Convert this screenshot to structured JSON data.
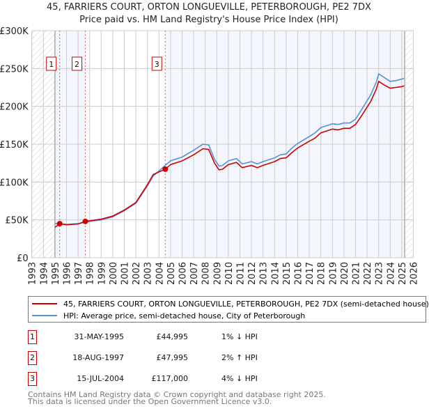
{
  "title_line1": "45, FARRIERS COURT, ORTON LONGUEVILLE, PETERBOROUGH, PE2 7DX",
  "title_line2": "Price paid vs. HM Land Registry's House Price Index (HPI)",
  "chart_data": {
    "type": "line",
    "xlim": [
      1993,
      2026
    ],
    "ylim": [
      0,
      300000
    ],
    "yticks": [
      0,
      50000,
      100000,
      150000,
      200000,
      250000,
      300000
    ],
    "ytick_labels": [
      "£0",
      "£50K",
      "£100K",
      "£150K",
      "£200K",
      "£250K",
      "£300K"
    ],
    "xticks": [
      1993,
      1994,
      1995,
      1996,
      1997,
      1998,
      1999,
      2000,
      2001,
      2002,
      2003,
      2004,
      2005,
      2006,
      2007,
      2008,
      2009,
      2010,
      2011,
      2012,
      2013,
      2014,
      2015,
      2016,
      2017,
      2018,
      2019,
      2020,
      2021,
      2022,
      2023,
      2024,
      2025,
      2026
    ],
    "grid": true,
    "hatched_before": 1995,
    "hatched_after": 2025.25,
    "series": [
      {
        "name": "45, FARRIERS COURT, ORTON LONGUEVILLE, PETERBOROUGH, PE2 7DX (semi-detached house)",
        "color": "#cc0000",
        "x": [
          1995.0,
          1995.41,
          1996,
          1997,
          1997.63,
          1998,
          1999,
          2000,
          2001,
          2002,
          2003,
          2003.5,
          2004.54,
          2005,
          2006,
          2007,
          2007.8,
          2008.3,
          2008.8,
          2009.2,
          2009.5,
          2010,
          2010.7,
          2011.2,
          2012,
          2012.5,
          2013,
          2014,
          2014.5,
          2015,
          2015.5,
          2016,
          2017,
          2017.5,
          2018,
          2019,
          2019.5,
          2020,
          2020.5,
          2021,
          2021.5,
          2022.3,
          2022.8,
          2023,
          2023.5,
          2024,
          2024.5,
          2025,
          2025.2
        ],
        "y": [
          40000,
          44995,
          43500,
          44600,
          47995,
          48800,
          51000,
          55000,
          63000,
          73000,
          96500,
          110000,
          117000,
          123000,
          128000,
          136000,
          144000,
          143000,
          125000,
          116000,
          117000,
          123000,
          126000,
          119000,
          122000,
          119000,
          122000,
          127000,
          131000,
          132000,
          139000,
          145000,
          154000,
          158000,
          165000,
          170000,
          169000,
          171000,
          171000,
          176000,
          187000,
          206000,
          223000,
          233000,
          228000,
          224000,
          225000,
          226000,
          227000
        ]
      },
      {
        "name": "HPI: Average price, semi-detached house, City of Peterborough",
        "color": "#5b8fd4",
        "x": [
          1995.0,
          1996,
          1997,
          1997.63,
          1998,
          1999,
          2000,
          2001,
          2002,
          2003,
          2003.5,
          2004.54,
          2005,
          2006,
          2007,
          2007.8,
          2008.3,
          2008.8,
          2009.2,
          2009.5,
          2010,
          2010.7,
          2011.2,
          2012,
          2012.5,
          2013,
          2014,
          2014.5,
          2015,
          2015.5,
          2016,
          2017,
          2017.5,
          2018,
          2019,
          2019.5,
          2020,
          2020.5,
          2021,
          2021.5,
          2022.3,
          2022.8,
          2023,
          2023.5,
          2024,
          2024.5,
          2025,
          2025.2
        ],
        "y": [
          45500,
          44000,
          45000,
          47000,
          48000,
          50000,
          54000,
          62000,
          72000,
          95000,
          108000,
          122000,
          128000,
          133000,
          142000,
          150000,
          149000,
          130000,
          121000,
          122000,
          128000,
          131000,
          124000,
          127000,
          124000,
          127000,
          132000,
          136000,
          137000,
          145000,
          151000,
          160000,
          165000,
          172000,
          177000,
          176000,
          178000,
          178000,
          183000,
          195000,
          215000,
          232000,
          243000,
          238000,
          233000,
          234000,
          236000,
          237000
        ]
      }
    ],
    "sales": [
      {
        "label": "1",
        "x": 1995.41,
        "y": 44995
      },
      {
        "label": "2",
        "x": 1997.63,
        "y": 47995
      },
      {
        "label": "3",
        "x": 2004.54,
        "y": 117000
      }
    ]
  },
  "legend": [
    {
      "label": "45, FARRIERS COURT, ORTON LONGUEVILLE, PETERBOROUGH, PE2 7DX (semi-detached house)",
      "color": "#cc0000"
    },
    {
      "label": "HPI: Average price, semi-detached house, City of Peterborough",
      "color": "#5b8fd4"
    }
  ],
  "transactions": [
    {
      "num": "1",
      "date": "31-MAY-1995",
      "price": "£44,995",
      "hpi": "1% ↓ HPI"
    },
    {
      "num": "2",
      "date": "18-AUG-1997",
      "price": "£47,995",
      "hpi": "2% ↑ HPI"
    },
    {
      "num": "3",
      "date": "15-JUL-2004",
      "price": "£117,000",
      "hpi": "4% ↓ HPI"
    }
  ],
  "footer_line1": "Contains HM Land Registry data © Crown copyright and database right 2025.",
  "footer_line2": "This data is licensed under the Open Government Licence v3.0."
}
